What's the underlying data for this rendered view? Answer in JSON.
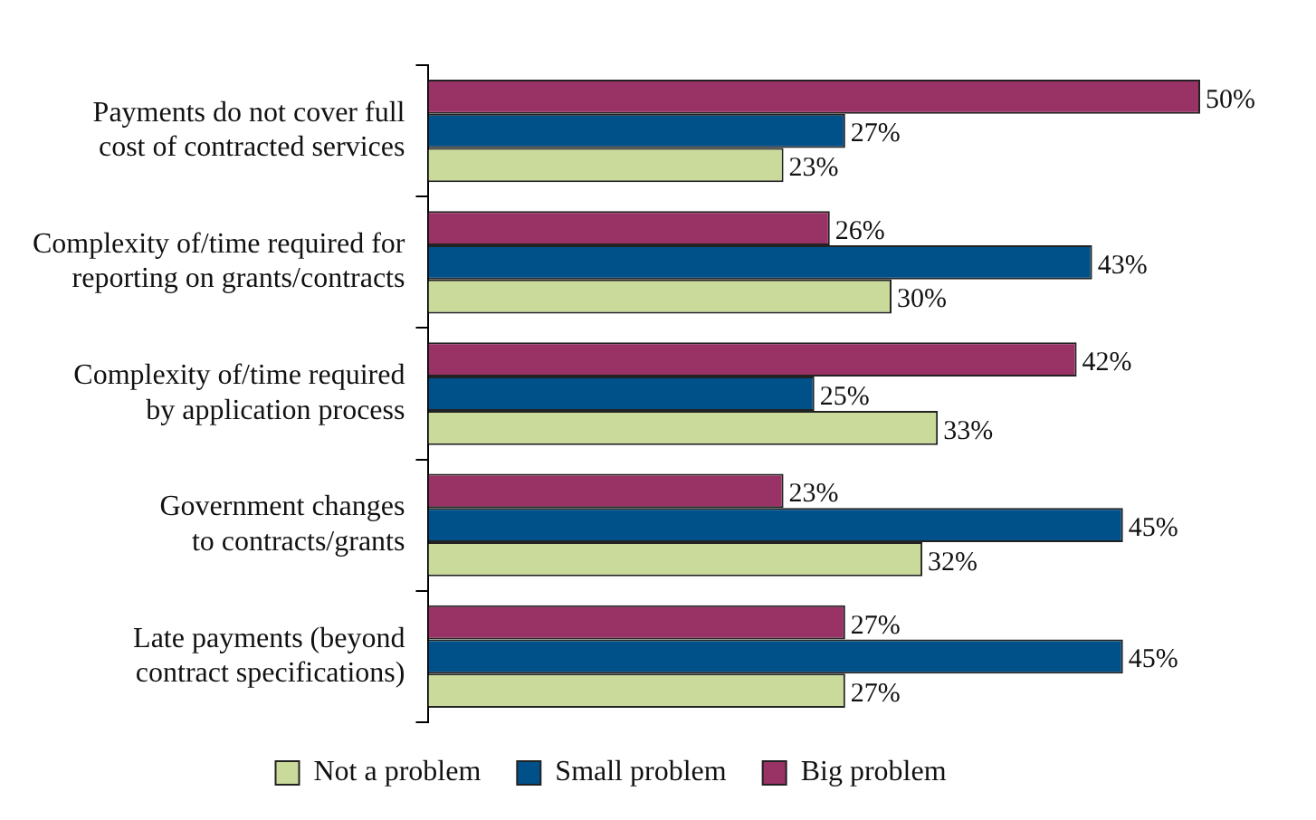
{
  "chart_data": {
    "type": "bar",
    "orientation": "horizontal",
    "legend": "bottom",
    "categories": [
      "Payments do not cover full cost of contracted services",
      "Complexity of/time required for reporting on grants/contracts",
      "Complexity of/time required by application process",
      "Government changes to contracts/grants",
      "Late payments (beyond contract specifications)"
    ],
    "series": [
      {
        "name": "Not a problem",
        "color": "#c9da9a",
        "values": [
          23,
          30,
          33,
          32,
          27
        ],
        "value_labels": [
          "23%",
          "30%",
          "33%",
          "32%",
          "27%"
        ]
      },
      {
        "name": "Small problem",
        "color": "#00518a",
        "values": [
          27,
          43,
          25,
          45,
          45
        ],
        "value_labels": [
          "27%",
          "43%",
          "25%",
          "45%",
          "45%"
        ]
      },
      {
        "name": "Big problem",
        "color": "#993366",
        "values": [
          50,
          26,
          42,
          23,
          27
        ],
        "value_labels": [
          "50%",
          "26%",
          "42%",
          "23%",
          "27%"
        ]
      }
    ]
  }
}
